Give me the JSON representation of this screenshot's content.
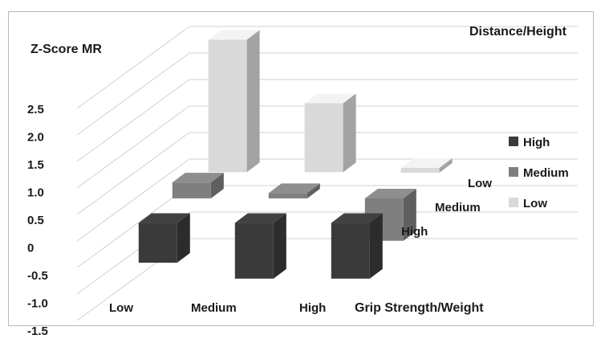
{
  "chart_data": {
    "type": "bar",
    "subtype": "3d-bar",
    "title": "",
    "ylabel": "Z-Score MR",
    "xlabel": "Grip Strength/Weight",
    "zlabel": "Distance/Height",
    "ylim": [
      -1.5,
      2.5
    ],
    "yticks": [
      "2.5",
      "2.0",
      "1.5",
      "1.0",
      "0.5",
      "0",
      "-0.5",
      "-1.0",
      "-1.5"
    ],
    "categories": [
      "Low",
      "Medium",
      "High"
    ],
    "depth_categories": [
      "High",
      "Medium",
      "Low"
    ],
    "series": [
      {
        "name": "High",
        "color": "#3a3a3a",
        "values": [
          -0.75,
          -1.05,
          -1.05
        ]
      },
      {
        "name": "Medium",
        "color": "#7f7f7f",
        "values": [
          0.3,
          0.1,
          -0.8
        ]
      },
      {
        "name": "Low",
        "color": "#d9d9d9",
        "values": [
          2.5,
          1.3,
          0.08
        ]
      }
    ],
    "legend": {
      "position": "right",
      "entries": [
        "High",
        "Medium",
        "Low"
      ]
    },
    "grid": true
  }
}
